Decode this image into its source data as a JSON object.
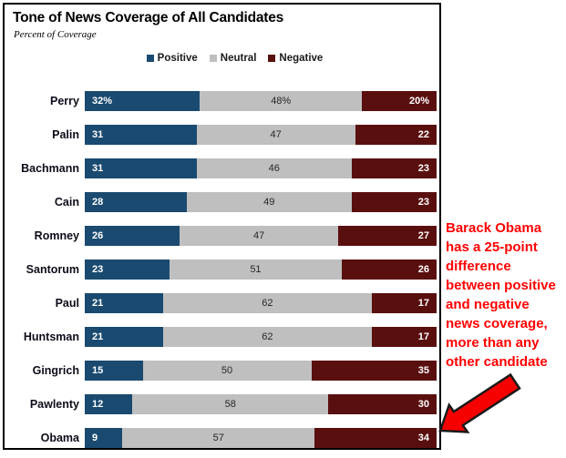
{
  "header": {
    "title": "Tone of News Coverage of All Candidates",
    "subtitle": "Percent of Coverage"
  },
  "legend": [
    {
      "label": "Positive",
      "color": "#1a4a70"
    },
    {
      "label": "Neutral",
      "color": "#bfbfbf"
    },
    {
      "label": "Negative",
      "color": "#5a0f0f"
    }
  ],
  "chart_data": {
    "type": "bar",
    "stacked": true,
    "orientation": "horizontal",
    "title": "Tone of News Coverage of All Candidates",
    "subtitle": "Percent of Coverage",
    "xlabel": "",
    "ylabel": "",
    "xlim": [
      0,
      100
    ],
    "grid": false,
    "legend_position": "top",
    "categories": [
      "Perry",
      "Palin",
      "Bachmann",
      "Cain",
      "Romney",
      "Santorum",
      "Paul",
      "Huntsman",
      "Gingrich",
      "Pawlenty",
      "Obama"
    ],
    "series": [
      {
        "name": "Positive",
        "color": "#1a4a70",
        "values": [
          32,
          31,
          31,
          28,
          26,
          23,
          21,
          21,
          15,
          12,
          9
        ]
      },
      {
        "name": "Neutral",
        "color": "#bfbfbf",
        "values": [
          48,
          47,
          46,
          49,
          47,
          51,
          62,
          62,
          50,
          58,
          57
        ]
      },
      {
        "name": "Negative",
        "color": "#5a0f0f",
        "values": [
          20,
          22,
          23,
          23,
          27,
          26,
          17,
          17,
          35,
          30,
          34
        ]
      }
    ],
    "value_labels": [
      [
        "32%",
        "48%",
        "20%"
      ],
      [
        "31",
        "47",
        "22"
      ],
      [
        "31",
        "46",
        "23"
      ],
      [
        "28",
        "49",
        "23"
      ],
      [
        "26",
        "47",
        "27"
      ],
      [
        "23",
        "51",
        "26"
      ],
      [
        "21",
        "62",
        "17"
      ],
      [
        "21",
        "62",
        "17"
      ],
      [
        "15",
        "50",
        "35"
      ],
      [
        "12",
        "58",
        "30"
      ],
      [
        "9",
        "57",
        "34"
      ]
    ]
  },
  "annotation": {
    "text": "Barack Obama has a 25-point difference between positive and negative news coverage, more than any other candidate",
    "color": "#ff0000"
  }
}
